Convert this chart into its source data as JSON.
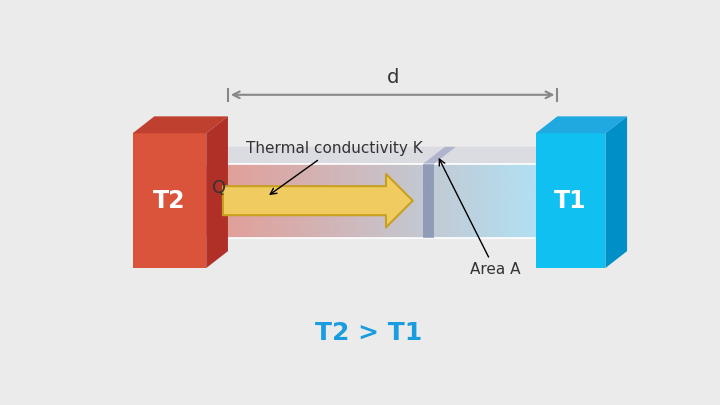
{
  "bg_color": "#ebebeb",
  "title_text": "T2 > T1",
  "title_color": "#1a9de0",
  "title_fontsize": 18,
  "hot_face_color": "#d9543a",
  "hot_top_color": "#c04030",
  "hot_side_color": "#b03028",
  "cold_face_color": "#10c0f0",
  "cold_top_color": "#20a8e0",
  "cold_side_color": "#0090c8",
  "arrow_face_color": "#f0cc60",
  "arrow_edge_color": "#c8a020",
  "dim_line_color": "#888888",
  "text_color": "#333333",
  "label_T2": "T2",
  "label_T1": "T1",
  "label_Q": "Q",
  "label_d": "d",
  "label_area": "Area A",
  "label_conductivity": "Thermal conductivity K"
}
